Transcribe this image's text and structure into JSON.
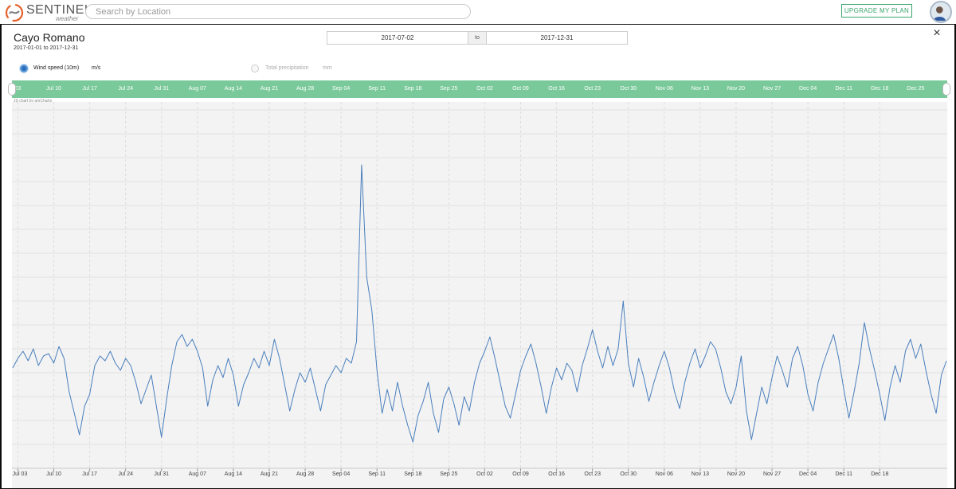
{
  "header": {
    "brand": "SENTINEL",
    "brand_sub": "weather",
    "search_placeholder": "Search by Location",
    "upgrade_label": "UPGRADE MY PLAN"
  },
  "panel": {
    "title": "Cayo Romano",
    "date_range": "2017-01-01 to 2017-12-31",
    "start_date": "2017-07-02",
    "to_label": "to",
    "end_date": "2017-12-31",
    "close_glyph": "×",
    "credit": "JS chart by amCharts"
  },
  "legend": {
    "items": [
      {
        "label": "Wind speed (10m)",
        "unit": "m/s",
        "selected": true
      },
      {
        "label": "Total precipitation",
        "unit": "mm",
        "selected": false
      }
    ]
  },
  "icons": {
    "logo": "sentinel-logo-icon",
    "close": "close-icon",
    "avatar": "user-avatar-icon"
  },
  "colors": {
    "accent": "#3aa56b",
    "scrollbar": "#7ac99a",
    "series": "#4a7fbd",
    "selected_radio": "#2e6ec0"
  },
  "scrollbar_labels": [
    "03",
    "Jul 10",
    "Jul 17",
    "Jul 24",
    "Jul 31",
    "Aug 07",
    "Aug 14",
    "Aug 21",
    "Aug 28",
    "Sep 04",
    "Sep 11",
    "Sep 18",
    "Sep 25",
    "Oct 02",
    "Oct 09",
    "Oct 16",
    "Oct 23",
    "Oct 30",
    "Nov 06",
    "Nov 13",
    "Nov 20",
    "Nov 27",
    "Dec 04",
    "Dec 11",
    "Dec 18",
    "Dec 25"
  ],
  "chart_data": {
    "type": "line",
    "title": "",
    "xlabel": "",
    "ylabel": "",
    "grid": true,
    "x_ticks": [
      "Jul 03",
      "Jul 10",
      "Jul 17",
      "Jul 24",
      "Jul 31",
      "Aug 07",
      "Aug 14",
      "Aug 21",
      "Aug 28",
      "Sep 04",
      "Sep 11",
      "Sep 18",
      "Sep 25",
      "Oct 02",
      "Oct 09",
      "Oct 16",
      "Oct 23",
      "Oct 30",
      "Nov 06",
      "Nov 13",
      "Nov 20",
      "Nov 27",
      "Dec 04",
      "Dec 11",
      "Dec 18"
    ],
    "xlim": [
      "2017-07-02",
      "2017-12-31"
    ],
    "ylim": [
      0,
      15
    ],
    "series": [
      {
        "name": "Wind speed (10m)",
        "unit": "m/s",
        "points": [
          [
            "2017-07-02",
            4.2
          ],
          [
            "2017-07-03",
            4.6
          ],
          [
            "2017-07-04",
            4.9
          ],
          [
            "2017-07-05",
            4.5
          ],
          [
            "2017-07-06",
            5.0
          ],
          [
            "2017-07-07",
            4.3
          ],
          [
            "2017-07-08",
            4.7
          ],
          [
            "2017-07-09",
            4.8
          ],
          [
            "2017-07-10",
            4.4
          ],
          [
            "2017-07-11",
            5.1
          ],
          [
            "2017-07-12",
            4.6
          ],
          [
            "2017-07-13",
            3.2
          ],
          [
            "2017-07-14",
            2.3
          ],
          [
            "2017-07-15",
            1.4
          ],
          [
            "2017-07-16",
            2.6
          ],
          [
            "2017-07-17",
            3.1
          ],
          [
            "2017-07-18",
            4.3
          ],
          [
            "2017-07-19",
            4.7
          ],
          [
            "2017-07-20",
            4.5
          ],
          [
            "2017-07-21",
            4.9
          ],
          [
            "2017-07-22",
            4.4
          ],
          [
            "2017-07-23",
            4.1
          ],
          [
            "2017-07-24",
            4.6
          ],
          [
            "2017-07-25",
            4.3
          ],
          [
            "2017-07-26",
            3.6
          ],
          [
            "2017-07-27",
            2.7
          ],
          [
            "2017-07-28",
            3.3
          ],
          [
            "2017-07-29",
            3.9
          ],
          [
            "2017-07-30",
            2.6
          ],
          [
            "2017-07-31",
            1.3
          ],
          [
            "2017-08-01",
            2.9
          ],
          [
            "2017-08-02",
            4.3
          ],
          [
            "2017-08-03",
            5.3
          ],
          [
            "2017-08-04",
            5.6
          ],
          [
            "2017-08-05",
            5.1
          ],
          [
            "2017-08-06",
            5.4
          ],
          [
            "2017-08-07",
            4.9
          ],
          [
            "2017-08-08",
            4.2
          ],
          [
            "2017-08-09",
            2.6
          ],
          [
            "2017-08-10",
            3.7
          ],
          [
            "2017-08-11",
            4.3
          ],
          [
            "2017-08-12",
            3.8
          ],
          [
            "2017-08-13",
            4.6
          ],
          [
            "2017-08-14",
            3.9
          ],
          [
            "2017-08-15",
            2.6
          ],
          [
            "2017-08-16",
            3.5
          ],
          [
            "2017-08-17",
            4.0
          ],
          [
            "2017-08-18",
            4.6
          ],
          [
            "2017-08-19",
            4.2
          ],
          [
            "2017-08-20",
            4.9
          ],
          [
            "2017-08-21",
            4.3
          ],
          [
            "2017-08-22",
            5.4
          ],
          [
            "2017-08-23",
            4.6
          ],
          [
            "2017-08-24",
            3.5
          ],
          [
            "2017-08-25",
            2.4
          ],
          [
            "2017-08-26",
            3.3
          ],
          [
            "2017-08-27",
            4.0
          ],
          [
            "2017-08-28",
            3.6
          ],
          [
            "2017-08-29",
            4.2
          ],
          [
            "2017-08-30",
            3.3
          ],
          [
            "2017-08-31",
            2.4
          ],
          [
            "2017-09-01",
            3.5
          ],
          [
            "2017-09-02",
            3.9
          ],
          [
            "2017-09-03",
            4.3
          ],
          [
            "2017-09-04",
            4.0
          ],
          [
            "2017-09-05",
            4.6
          ],
          [
            "2017-09-06",
            4.4
          ],
          [
            "2017-09-07",
            5.3
          ],
          [
            "2017-09-08",
            12.7
          ],
          [
            "2017-09-09",
            8.0
          ],
          [
            "2017-09-10",
            6.6
          ],
          [
            "2017-09-11",
            4.1
          ],
          [
            "2017-09-12",
            2.3
          ],
          [
            "2017-09-13",
            3.3
          ],
          [
            "2017-09-14",
            2.4
          ],
          [
            "2017-09-15",
            3.6
          ],
          [
            "2017-09-16",
            2.6
          ],
          [
            "2017-09-17",
            1.8
          ],
          [
            "2017-09-18",
            1.1
          ],
          [
            "2017-09-19",
            2.2
          ],
          [
            "2017-09-20",
            2.8
          ],
          [
            "2017-09-21",
            3.6
          ],
          [
            "2017-09-22",
            2.3
          ],
          [
            "2017-09-23",
            1.5
          ],
          [
            "2017-09-24",
            2.9
          ],
          [
            "2017-09-25",
            3.4
          ],
          [
            "2017-09-26",
            2.7
          ],
          [
            "2017-09-27",
            1.8
          ],
          [
            "2017-09-28",
            3.0
          ],
          [
            "2017-09-29",
            2.4
          ],
          [
            "2017-09-30",
            3.6
          ],
          [
            "2017-10-01",
            4.4
          ],
          [
            "2017-10-02",
            4.9
          ],
          [
            "2017-10-03",
            5.5
          ],
          [
            "2017-10-04",
            4.6
          ],
          [
            "2017-10-05",
            3.6
          ],
          [
            "2017-10-06",
            2.6
          ],
          [
            "2017-10-07",
            2.1
          ],
          [
            "2017-10-08",
            3.1
          ],
          [
            "2017-10-09",
            4.1
          ],
          [
            "2017-10-10",
            4.7
          ],
          [
            "2017-10-11",
            5.2
          ],
          [
            "2017-10-12",
            4.4
          ],
          [
            "2017-10-13",
            3.4
          ],
          [
            "2017-10-14",
            2.3
          ],
          [
            "2017-10-15",
            3.4
          ],
          [
            "2017-10-16",
            4.2
          ],
          [
            "2017-10-17",
            3.7
          ],
          [
            "2017-10-18",
            4.4
          ],
          [
            "2017-10-19",
            4.1
          ],
          [
            "2017-10-20",
            3.2
          ],
          [
            "2017-10-21",
            4.3
          ],
          [
            "2017-10-22",
            5.0
          ],
          [
            "2017-10-23",
            5.8
          ],
          [
            "2017-10-24",
            4.9
          ],
          [
            "2017-10-25",
            4.2
          ],
          [
            "2017-10-26",
            5.1
          ],
          [
            "2017-10-27",
            4.3
          ],
          [
            "2017-10-28",
            5.0
          ],
          [
            "2017-10-29",
            7.0
          ],
          [
            "2017-10-30",
            4.4
          ],
          [
            "2017-10-31",
            3.4
          ],
          [
            "2017-11-01",
            4.6
          ],
          [
            "2017-11-02",
            3.8
          ],
          [
            "2017-11-03",
            2.8
          ],
          [
            "2017-11-04",
            3.6
          ],
          [
            "2017-11-05",
            4.3
          ],
          [
            "2017-11-06",
            4.9
          ],
          [
            "2017-11-07",
            4.2
          ],
          [
            "2017-11-08",
            3.2
          ],
          [
            "2017-11-09",
            2.5
          ],
          [
            "2017-11-10",
            3.6
          ],
          [
            "2017-11-11",
            4.4
          ],
          [
            "2017-11-12",
            5.0
          ],
          [
            "2017-11-13",
            4.2
          ],
          [
            "2017-11-14",
            4.7
          ],
          [
            "2017-11-15",
            5.3
          ],
          [
            "2017-11-16",
            5.0
          ],
          [
            "2017-11-17",
            4.2
          ],
          [
            "2017-11-18",
            3.2
          ],
          [
            "2017-11-19",
            2.7
          ],
          [
            "2017-11-20",
            3.4
          ],
          [
            "2017-11-21",
            4.7
          ],
          [
            "2017-11-22",
            2.4
          ],
          [
            "2017-11-23",
            1.2
          ],
          [
            "2017-11-24",
            2.3
          ],
          [
            "2017-11-25",
            3.4
          ],
          [
            "2017-11-26",
            2.7
          ],
          [
            "2017-11-27",
            3.8
          ],
          [
            "2017-11-28",
            4.7
          ],
          [
            "2017-11-29",
            4.1
          ],
          [
            "2017-11-30",
            3.4
          ],
          [
            "2017-12-01",
            4.6
          ],
          [
            "2017-12-02",
            5.1
          ],
          [
            "2017-12-03",
            4.3
          ],
          [
            "2017-12-04",
            3.1
          ],
          [
            "2017-12-05",
            2.4
          ],
          [
            "2017-12-06",
            3.6
          ],
          [
            "2017-12-07",
            4.4
          ],
          [
            "2017-12-08",
            5.0
          ],
          [
            "2017-12-09",
            5.6
          ],
          [
            "2017-12-10",
            4.6
          ],
          [
            "2017-12-11",
            3.3
          ],
          [
            "2017-12-12",
            2.1
          ],
          [
            "2017-12-13",
            3.2
          ],
          [
            "2017-12-14",
            4.4
          ],
          [
            "2017-12-15",
            6.1
          ],
          [
            "2017-12-16",
            5.0
          ],
          [
            "2017-12-17",
            4.1
          ],
          [
            "2017-12-18",
            3.1
          ],
          [
            "2017-12-19",
            2.0
          ],
          [
            "2017-12-20",
            3.4
          ],
          [
            "2017-12-21",
            4.3
          ],
          [
            "2017-12-22",
            3.6
          ],
          [
            "2017-12-23",
            4.9
          ],
          [
            "2017-12-24",
            5.4
          ],
          [
            "2017-12-25",
            4.6
          ],
          [
            "2017-12-26",
            5.2
          ],
          [
            "2017-12-27",
            4.1
          ],
          [
            "2017-12-28",
            3.1
          ],
          [
            "2017-12-29",
            2.3
          ],
          [
            "2017-12-30",
            3.9
          ],
          [
            "2017-12-31",
            4.5
          ]
        ]
      }
    ]
  }
}
